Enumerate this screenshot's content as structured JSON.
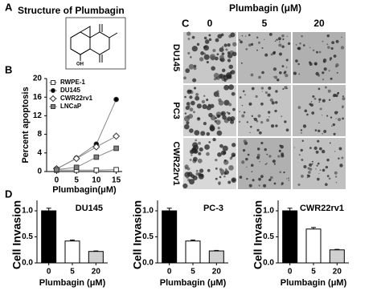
{
  "panel_letters": [
    "A",
    "B",
    "C",
    "D"
  ],
  "panels": {
    "a": {
      "title": "Structure of Plumbagin",
      "oh_label": "OH"
    },
    "c": {
      "title": "Plumbagin (μM)",
      "column_labels": [
        "0",
        "5",
        "20"
      ],
      "row_labels": [
        "DU145",
        "PC3",
        "CWR22rv1"
      ]
    }
  },
  "chart_data": [
    {
      "type": "line",
      "y_label": "Percent apoptosis",
      "x_label": "Plumbagin(μM)",
      "x": [
        0,
        5,
        10,
        15
      ],
      "xlim": [
        -2.5,
        16.5
      ],
      "xticks": [
        0,
        5,
        10,
        15
      ],
      "ylim": [
        0,
        20
      ],
      "yticks": [
        0,
        4,
        8,
        12,
        16,
        20
      ],
      "legend": "upper left",
      "series": [
        {
          "name": "RWPE-1",
          "color": "#ffffff",
          "marker": "square",
          "values": [
            0.3,
            0.3,
            0.3,
            0.4
          ]
        },
        {
          "name": "DU145",
          "color": "#000000",
          "marker": "circle",
          "values": [
            0.5,
            2.9,
            5.9,
            15.5
          ]
        },
        {
          "name": "CWR22rv1",
          "color": "#ffffff",
          "marker": "diamond",
          "values": [
            0.6,
            2.8,
            5.3,
            7.6
          ]
        },
        {
          "name": "LNCaP",
          "color": "#808080",
          "marker": "square",
          "values": [
            0.4,
            0.9,
            3.1,
            5.0
          ]
        }
      ]
    },
    {
      "type": "bar",
      "title": "DU145",
      "y_label": "Cell Invasion",
      "x_label": "Plumbagin (μM)",
      "categories": [
        "0",
        "5",
        "20"
      ],
      "values": [
        1.0,
        0.42,
        0.22
      ],
      "errors": [
        0.05,
        0.02,
        0.01
      ],
      "colors": [
        "#000000",
        "#ffffff",
        "#d0d0d0"
      ],
      "ylim": [
        0,
        1.2
      ],
      "yticks": [
        {
          "value": 0,
          "label": "0.0"
        },
        {
          "value": 0.5,
          "label": "0.5"
        },
        {
          "value": 1,
          "label": "1.0"
        }
      ]
    },
    {
      "type": "bar",
      "title": "PC-3",
      "y_label": "Cell Invasion",
      "x_label": "Plumbagin (μM)",
      "categories": [
        "0",
        "5",
        "20"
      ],
      "values": [
        1.0,
        0.42,
        0.23
      ],
      "errors": [
        0.05,
        0.02,
        0.01
      ],
      "colors": [
        "#000000",
        "#ffffff",
        "#d0d0d0"
      ],
      "ylim": [
        0,
        1.2
      ],
      "yticks": [
        {
          "value": 0,
          "label": "0.0"
        },
        {
          "value": 0.5,
          "label": "0.5"
        },
        {
          "value": 1,
          "label": "1.0"
        }
      ]
    },
    {
      "type": "bar",
      "title": "CWR22rv1",
      "y_label": "Cell Invasion",
      "x_label": "Plumbagin (μM)",
      "categories": [
        "0",
        "5",
        "20"
      ],
      "values": [
        1.0,
        0.65,
        0.25
      ],
      "errors": [
        0.05,
        0.03,
        0.01
      ],
      "colors": [
        "#000000",
        "#ffffff",
        "#d0d0d0"
      ],
      "ylim": [
        0,
        1.2
      ],
      "yticks": [
        {
          "value": 0,
          "label": "0.0"
        },
        {
          "value": 0.5,
          "label": "0.5"
        },
        {
          "value": 1,
          "label": "1.0"
        }
      ]
    }
  ]
}
